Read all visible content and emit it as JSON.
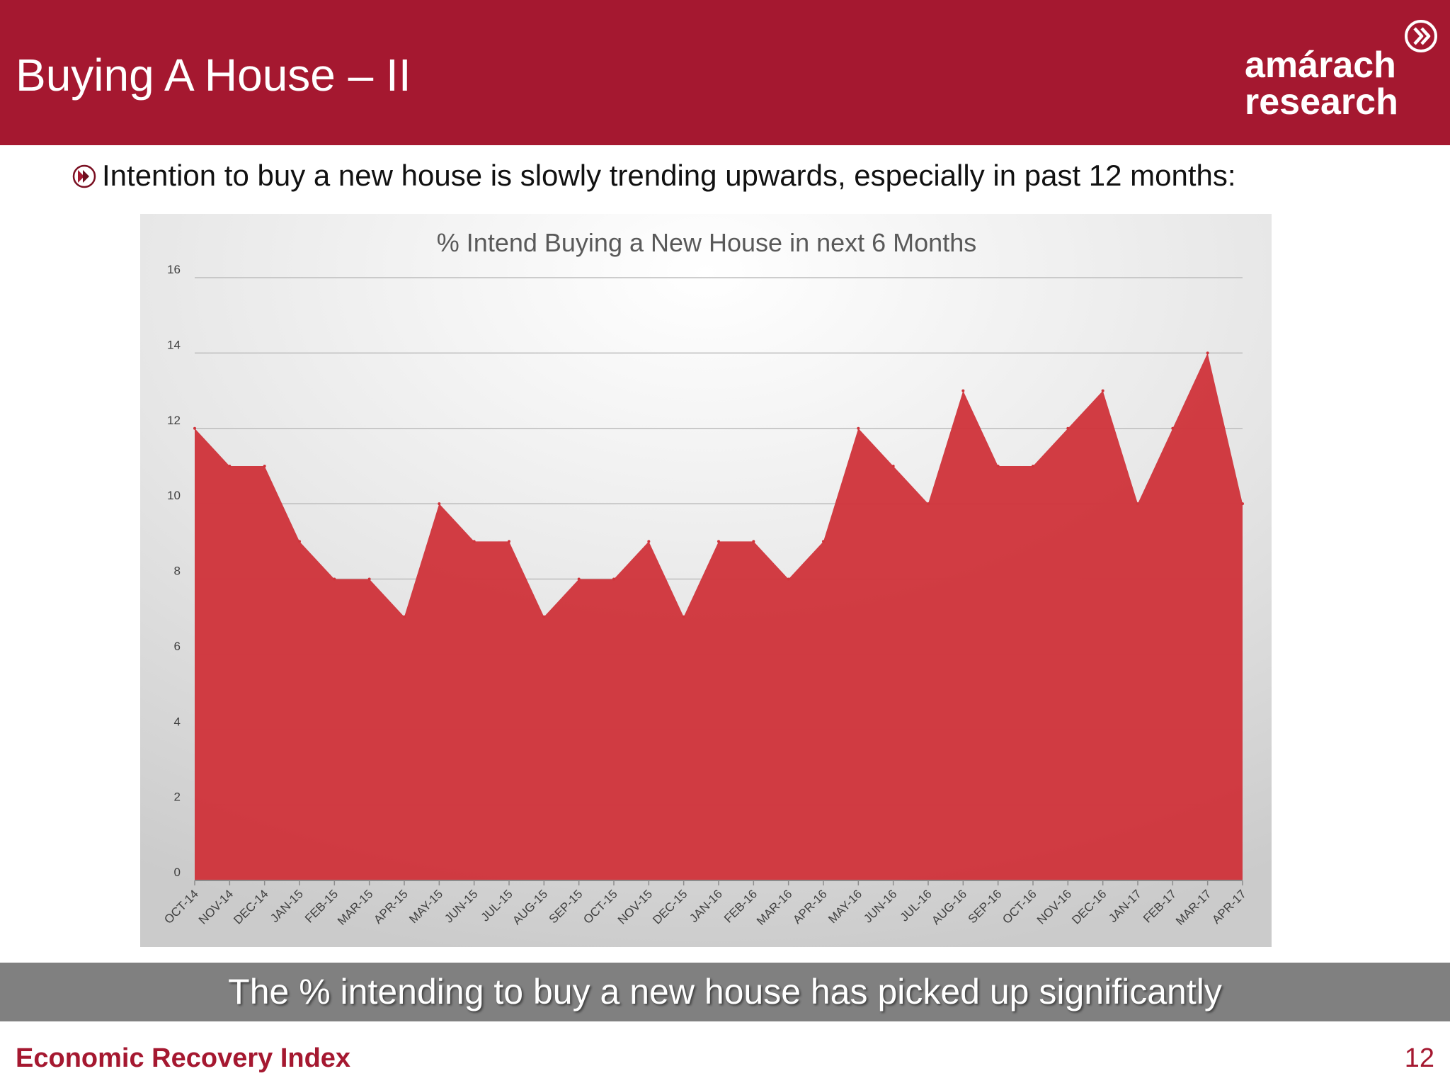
{
  "slide": {
    "title": "Buying A House – II",
    "bullet": "Intention to buy a new house is slowly trending upwards, especially in past 12 months:",
    "banner": "The % intending to buy a new house has picked up significantly",
    "footer_left": "Economic Recovery Index",
    "page_number": "12"
  },
  "logo": {
    "line1": "amárach",
    "line2": "research",
    "icon": "chevron-circle-icon"
  },
  "colors": {
    "brand": "#a51830",
    "area_fill": "#cf343b",
    "banner": "#808080"
  },
  "chart_data": {
    "type": "area",
    "title": "% Intend Buying a New House in next 6 Months",
    "xlabel": "",
    "ylabel": "",
    "ylim": [
      0,
      16
    ],
    "yticks": [
      0,
      2,
      4,
      6,
      8,
      10,
      12,
      14,
      16
    ],
    "grid": true,
    "legend": "none",
    "categories": [
      "OCT-14",
      "NOV-14",
      "DEC-14",
      "JAN-15",
      "FEB-15",
      "MAR-15",
      "APR-15",
      "MAY-15",
      "JUN-15",
      "JUL-15",
      "AUG-15",
      "SEP-15",
      "OCT-15",
      "NOV-15",
      "DEC-15",
      "JAN-16",
      "FEB-16",
      "MAR-16",
      "APR-16",
      "MAY-16",
      "JUN-16",
      "JUL-16",
      "AUG-16",
      "SEP-16",
      "OCT-16",
      "NOV-16",
      "DEC-16",
      "JAN-17",
      "FEB-17",
      "MAR-17",
      "APR-17"
    ],
    "values": [
      12,
      11,
      11,
      9,
      8,
      8,
      7,
      10,
      9,
      9,
      7,
      8,
      8,
      9,
      7,
      9,
      9,
      8,
      9,
      12,
      11,
      10,
      13,
      11,
      11,
      12,
      13,
      10,
      12,
      14,
      10
    ]
  }
}
